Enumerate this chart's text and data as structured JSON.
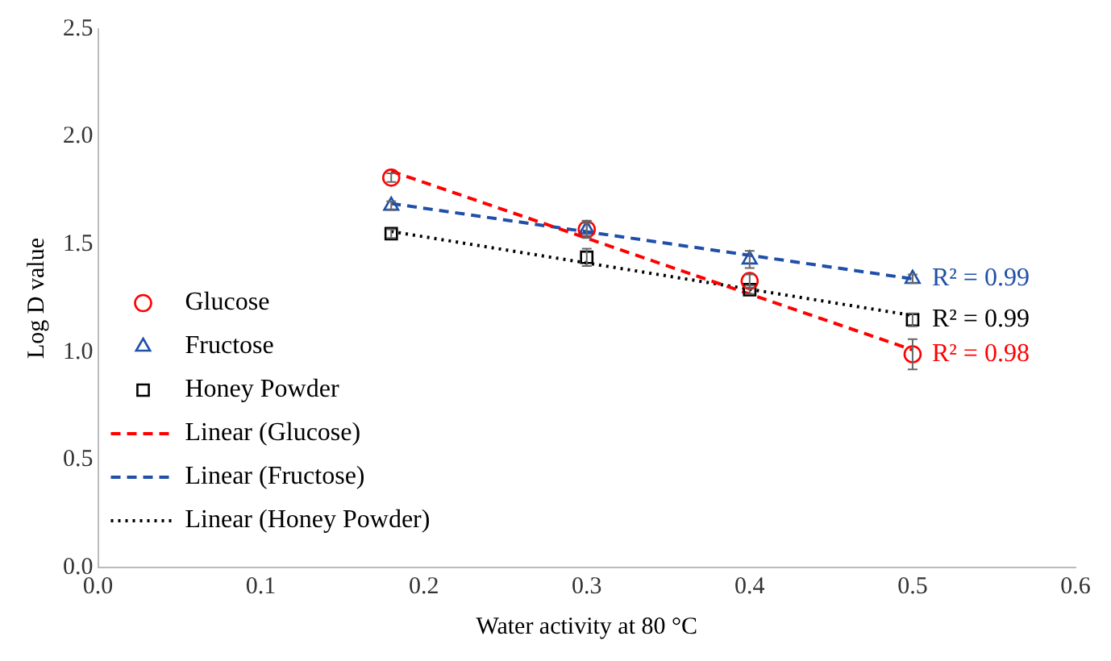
{
  "chart_data": {
    "type": "scatter",
    "xlabel": "Water activity at 80 °C",
    "ylabel": "Log D value",
    "xlim": [
      0,
      0.6
    ],
    "xticks": [
      {
        "value": 0,
        "label": "0.0"
      },
      0.1,
      0.2,
      0.3,
      0.4,
      0.5,
      0.6
    ],
    "ylim": [
      0,
      2.5
    ],
    "yticks": [
      {
        "value": 0,
        "label": "0.0"
      },
      0.5,
      {
        "value": 1,
        "label": "1.0"
      },
      1.5,
      {
        "value": 2,
        "label": "2.0"
      },
      2.5
    ],
    "grid": false,
    "legend": "left",
    "series": [
      {
        "name": "Glucose",
        "marker": "circle",
        "color": "#ff0000",
        "x": [
          0.18,
          0.3,
          0.4,
          0.5
        ],
        "values": [
          1.81,
          1.57,
          1.33,
          0.99
        ],
        "errors": [
          0.02,
          0.04,
          0.03,
          0.07
        ]
      },
      {
        "name": "Fructose",
        "marker": "triangle",
        "color": "#1f4fa8",
        "x": [
          0.18,
          0.3,
          0.4,
          0.5
        ],
        "values": [
          1.68,
          1.57,
          1.43,
          1.34
        ],
        "errors": [
          0.02,
          0.03,
          0.04,
          0.02
        ]
      },
      {
        "name": "Honey Powder",
        "marker": "square",
        "color": "#000000",
        "x": [
          0.18,
          0.3,
          0.4,
          0.5
        ],
        "values": [
          1.55,
          1.44,
          1.29,
          1.15
        ],
        "errors": [
          0.02,
          0.04,
          0.02,
          0.03
        ]
      },
      {
        "name": "Linear (Glucose)",
        "type": "line",
        "line_style": "dashed",
        "color": "#ff0000",
        "x": [
          0.18,
          0.5
        ],
        "values": [
          1.84,
          1.01
        ]
      },
      {
        "name": "Linear (Fructose)",
        "type": "line",
        "line_style": "dashed",
        "color": "#1f4fa8",
        "x": [
          0.18,
          0.5
        ],
        "values": [
          1.69,
          1.34
        ]
      },
      {
        "name": "Linear (Honey Powder)",
        "type": "line",
        "line_style": "dotted",
        "color": "#000000",
        "x": [
          0.18,
          0.5
        ],
        "values": [
          1.56,
          1.17
        ]
      }
    ],
    "annotations": [
      "R² = 0.98",
      "R² = 0.99",
      "R² = 0.99"
    ]
  }
}
